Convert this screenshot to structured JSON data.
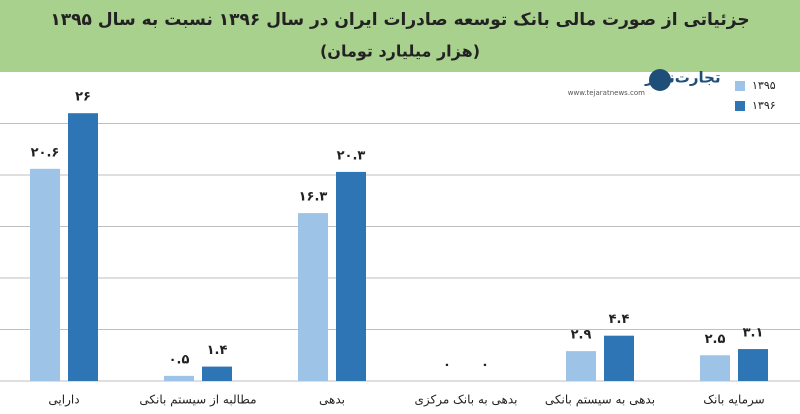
{
  "chart_data": {
    "type": "bar",
    "title": "جزئیاتی از صورت مالی بانک توسعه صادرات ایران در سال ۱۳۹۶ نسبت به سال ۱۳۹۵",
    "subtitle": "(هزار میلیارد تومان)",
    "logo": "تجارت‌نیوز",
    "logo_url": "www.tejaratnews.com",
    "categories": [
      "دارایی",
      "مطالبه از سیستم بانکی",
      "بدهی",
      "بدهی به بانک مرکزی",
      "بدهی به سیستم بانکی",
      "سرمایه بانک"
    ],
    "series": [
      {
        "name": "۱۳۹۵",
        "color": "#9dc3e6",
        "values": [
          20.6,
          0.5,
          16.3,
          0,
          2.9,
          2.5
        ],
        "value_labels": [
          "۲۰.۶",
          "۰.۵",
          "۱۶.۳",
          "۰",
          "۲.۹",
          "۲.۵"
        ]
      },
      {
        "name": "۱۳۹۶",
        "color": "#2e75b6",
        "values": [
          26,
          1.4,
          20.3,
          0,
          4.4,
          3.1
        ],
        "value_labels": [
          "۲۶",
          "۱.۴",
          "۲۰.۳",
          "۰",
          "۴.۴",
          "۳.۱"
        ]
      }
    ],
    "ylim": [
      0,
      30
    ],
    "yticks": [
      0,
      5,
      10,
      15,
      20,
      25
    ],
    "grid": true,
    "legend": "top-right"
  }
}
